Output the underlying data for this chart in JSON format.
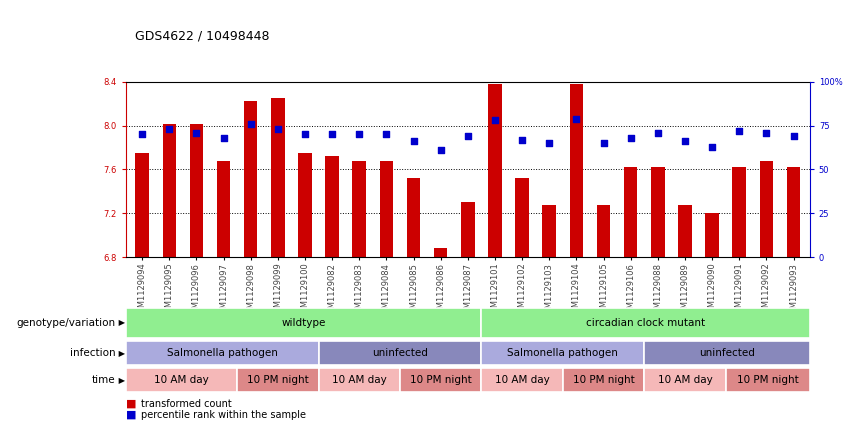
{
  "title": "GDS4622 / 10498448",
  "samples": [
    "GSM1129094",
    "GSM1129095",
    "GSM1129096",
    "GSM1129097",
    "GSM1129098",
    "GSM1129099",
    "GSM1129100",
    "GSM1129082",
    "GSM1129083",
    "GSM1129084",
    "GSM1129085",
    "GSM1129086",
    "GSM1129087",
    "GSM1129101",
    "GSM1129102",
    "GSM1129103",
    "GSM1129104",
    "GSM1129105",
    "GSM1129106",
    "GSM1129088",
    "GSM1129089",
    "GSM1129090",
    "GSM1129091",
    "GSM1129092",
    "GSM1129093"
  ],
  "transformed_count": [
    7.75,
    8.01,
    8.01,
    7.68,
    8.22,
    8.25,
    7.75,
    7.72,
    7.68,
    7.68,
    7.52,
    6.88,
    7.3,
    8.38,
    7.52,
    7.28,
    8.38,
    7.28,
    7.62,
    7.62,
    7.28,
    7.2,
    7.62,
    7.68,
    7.62
  ],
  "percentile_rank": [
    70,
    73,
    71,
    68,
    76,
    73,
    70,
    70,
    70,
    70,
    66,
    61,
    69,
    78,
    67,
    65,
    79,
    65,
    68,
    71,
    66,
    63,
    72,
    71,
    69
  ],
  "ylim_left": [
    6.8,
    8.4
  ],
  "ylim_right": [
    0,
    100
  ],
  "yticks_left": [
    6.8,
    7.2,
    7.6,
    8.0,
    8.4
  ],
  "yticks_right": [
    0,
    25,
    50,
    75,
    100
  ],
  "ytick_labels_right": [
    "0",
    "25",
    "50",
    "75",
    "100%"
  ],
  "bar_color": "#cc0000",
  "dot_color": "#0000cc",
  "background_color": "#ffffff",
  "genotype_groups": [
    {
      "label": "wildtype",
      "start": 0,
      "end": 13,
      "color": "#90ee90"
    },
    {
      "label": "circadian clock mutant",
      "start": 13,
      "end": 25,
      "color": "#90ee90"
    }
  ],
  "infection_groups": [
    {
      "label": "Salmonella pathogen",
      "start": 0,
      "end": 7,
      "color": "#aaaadd"
    },
    {
      "label": "uninfected",
      "start": 7,
      "end": 13,
      "color": "#8888bb"
    },
    {
      "label": "Salmonella pathogen",
      "start": 13,
      "end": 19,
      "color": "#aaaadd"
    },
    {
      "label": "uninfected",
      "start": 19,
      "end": 25,
      "color": "#8888bb"
    }
  ],
  "time_groups": [
    {
      "label": "10 AM day",
      "start": 0,
      "end": 4,
      "color": "#f5b8b8"
    },
    {
      "label": "10 PM night",
      "start": 4,
      "end": 7,
      "color": "#dd8888"
    },
    {
      "label": "10 AM day",
      "start": 7,
      "end": 10,
      "color": "#f5b8b8"
    },
    {
      "label": "10 PM night",
      "start": 10,
      "end": 13,
      "color": "#dd8888"
    },
    {
      "label": "10 AM day",
      "start": 13,
      "end": 16,
      "color": "#f5b8b8"
    },
    {
      "label": "10 PM night",
      "start": 16,
      "end": 19,
      "color": "#dd8888"
    },
    {
      "label": "10 AM day",
      "start": 19,
      "end": 22,
      "color": "#f5b8b8"
    },
    {
      "label": "10 PM night",
      "start": 22,
      "end": 25,
      "color": "#dd8888"
    }
  ],
  "legend_items": [
    {
      "label": "transformed count",
      "color": "#cc0000"
    },
    {
      "label": "percentile rank within the sample",
      "color": "#0000cc"
    }
  ],
  "row_labels": [
    "genotype/variation",
    "infection",
    "time"
  ],
  "tick_fontsize": 6.0,
  "title_fontsize": 9,
  "annot_fontsize": 7.5,
  "row_label_fontsize": 7.5
}
